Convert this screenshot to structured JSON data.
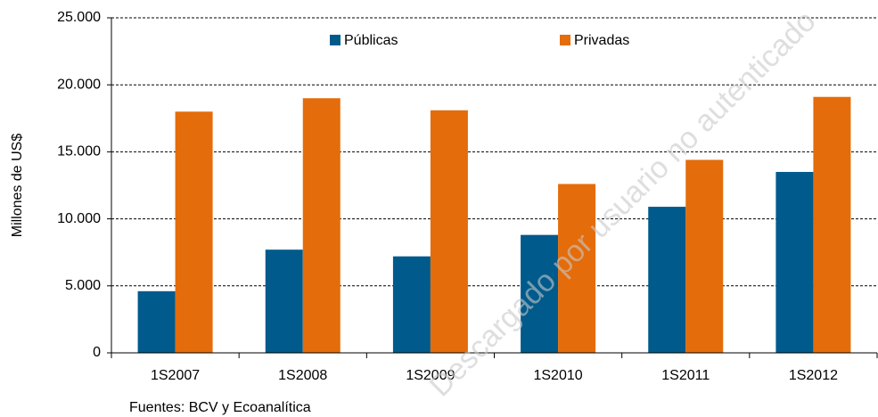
{
  "chart_data": {
    "type": "bar",
    "categories": [
      "1S2007",
      "1S2008",
      "1S2009",
      "1S2010",
      "1S2011",
      "1S2012"
    ],
    "series": [
      {
        "name": "Públicas",
        "color": "#005a8c",
        "values": [
          4600,
          7700,
          7200,
          8800,
          10900,
          13500
        ]
      },
      {
        "name": "Privadas",
        "color": "#e46c0a",
        "values": [
          18000,
          19000,
          18100,
          12600,
          14400,
          19100
        ]
      }
    ],
    "ylabel": "Millones de US$",
    "ylim": [
      0,
      25000
    ],
    "yticks": [
      0,
      {
        "value": 5000,
        "label": "5.000"
      },
      {
        "value": 10000,
        "label": "10.000"
      },
      {
        "value": 15000,
        "label": "15.000"
      },
      {
        "value": 20000,
        "label": "20.000"
      },
      {
        "value": 25000,
        "label": "25.000"
      }
    ],
    "grid": true,
    "legend": "top",
    "note": "Fuentes: BCV y Ecoanalítica",
    "watermark": "Descargado por usuario no autenticado"
  }
}
